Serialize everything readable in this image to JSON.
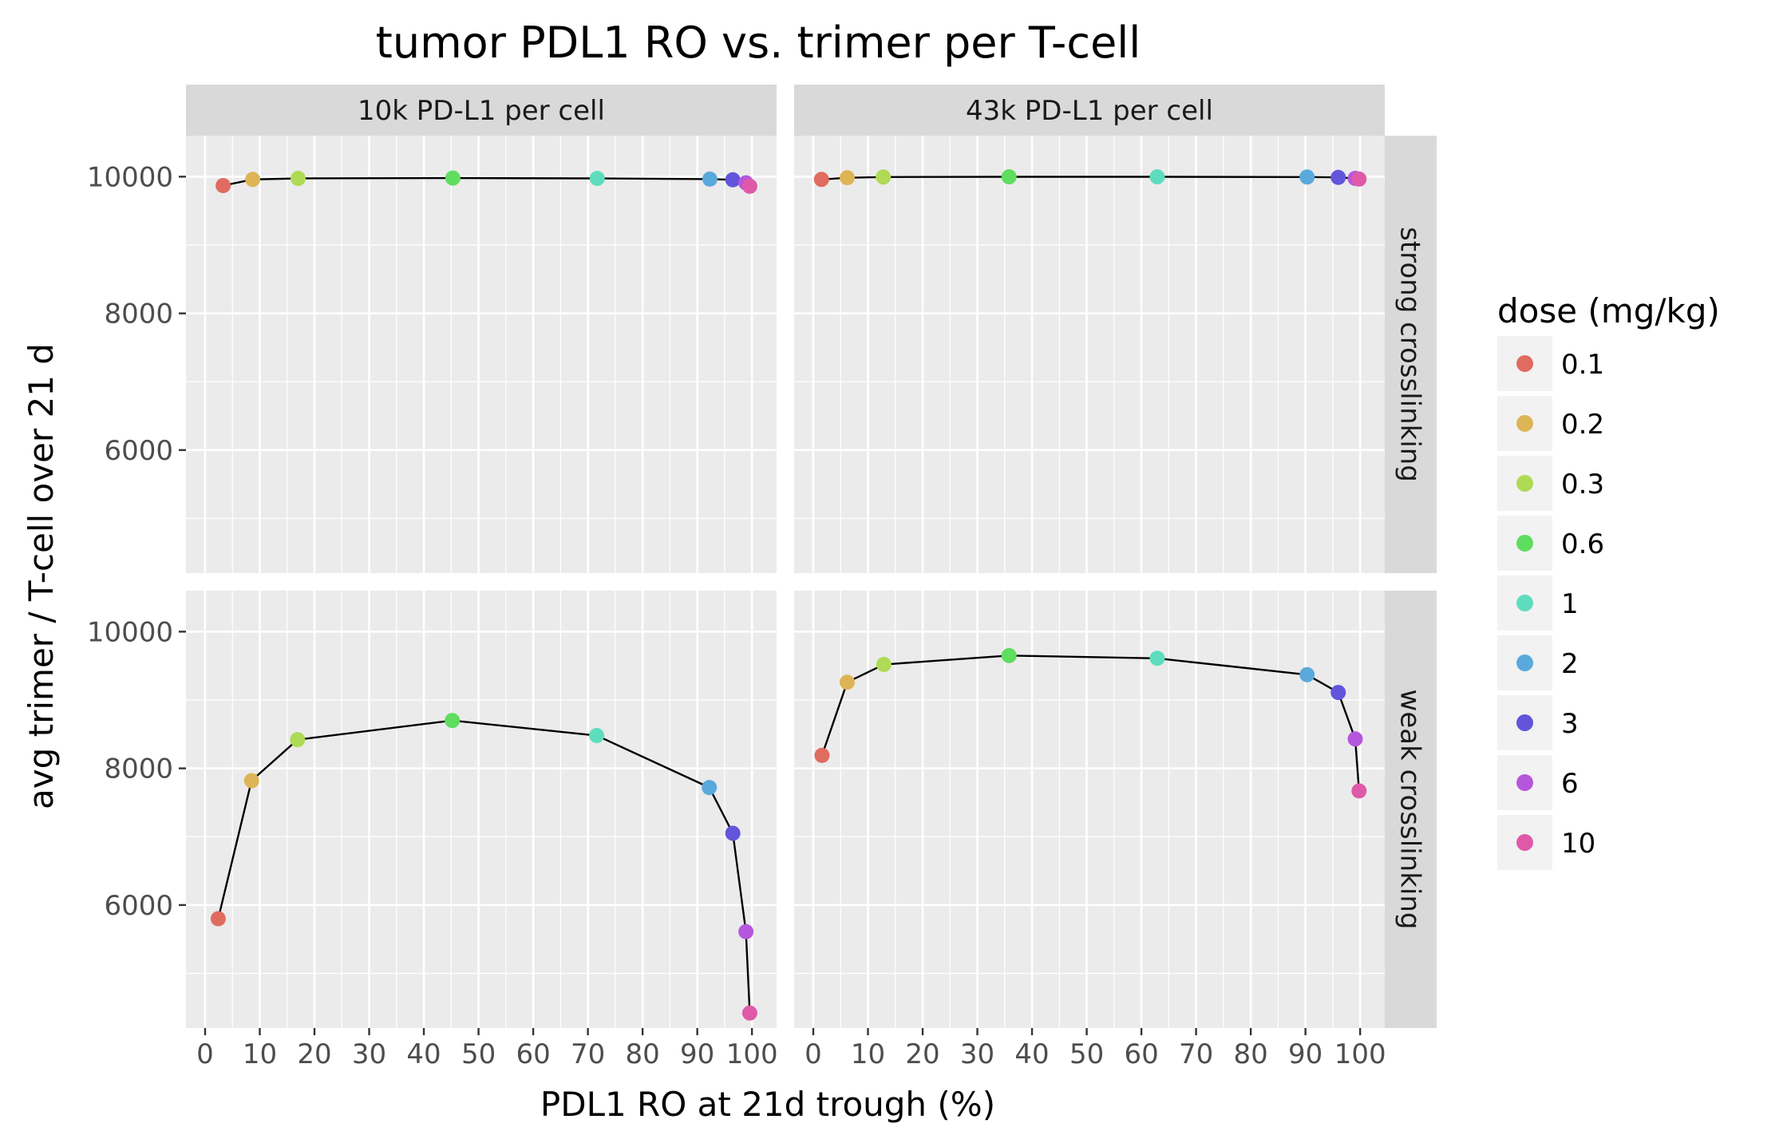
{
  "chart_data": {
    "type": "scatter",
    "title": "tumor PDL1 RO vs. trimer per T-cell",
    "xlabel": "PDL1 RO at 21d trough (%)",
    "ylabel": "avg trimer / T-cell over 21 d",
    "xlim": [
      -3.5,
      104.5
    ],
    "ylim": [
      4200,
      10600
    ],
    "x_ticks": [
      0,
      10,
      20,
      30,
      40,
      50,
      60,
      70,
      80,
      90,
      100
    ],
    "x_tick_labels": [
      "0",
      "10",
      "20",
      "30",
      "40",
      "50",
      "60",
      "70",
      "80",
      "90",
      "100"
    ],
    "y_ticks": [
      6000,
      8000,
      10000
    ],
    "y_tick_labels": [
      "6000",
      "8000",
      "10000"
    ],
    "grid": true,
    "legend_position": "right",
    "legend_title": "dose (mg/kg)",
    "legend": [
      {
        "label": "0.1",
        "color": "#E06B5F"
      },
      {
        "label": "0.2",
        "color": "#DDB556"
      },
      {
        "label": "0.3",
        "color": "#AEDA55"
      },
      {
        "label": "0.6",
        "color": "#5EDD5F"
      },
      {
        "label": "1",
        "color": "#5EDDBE"
      },
      {
        "label": "2",
        "color": "#5AA9DC"
      },
      {
        "label": "3",
        "color": "#6255DB"
      },
      {
        "label": "6",
        "color": "#B656DC"
      },
      {
        "label": "10",
        "color": "#DE5AA8"
      }
    ],
    "col_strips": [
      "10k PD-L1 per cell",
      "43k PD-L1 per cell"
    ],
    "row_strips": [
      "strong crosslinking",
      "weak crosslinking"
    ],
    "panels": [
      {
        "row": 0,
        "col": 0,
        "x": [
          3.3,
          8.7,
          17.0,
          45.3,
          71.7,
          92.3,
          96.5,
          98.9,
          99.6
        ],
        "y": [
          9870,
          9960,
          9975,
          9980,
          9975,
          9965,
          9955,
          9910,
          9860
        ]
      },
      {
        "row": 0,
        "col": 1,
        "x": [
          1.5,
          6.2,
          12.8,
          35.8,
          62.9,
          90.3,
          96.0,
          99.1,
          99.8
        ],
        "y": [
          9960,
          9985,
          9995,
          9998,
          9998,
          9995,
          9990,
          9975,
          9965
        ]
      },
      {
        "row": 1,
        "col": 0,
        "x": [
          2.4,
          8.5,
          16.9,
          45.2,
          71.6,
          92.2,
          96.5,
          98.9,
          99.6
        ],
        "y": [
          5800,
          7820,
          8420,
          8700,
          8480,
          7720,
          7050,
          5610,
          4420
        ]
      },
      {
        "row": 1,
        "col": 1,
        "x": [
          1.6,
          6.2,
          12.9,
          35.8,
          62.9,
          90.3,
          96.0,
          99.1,
          99.8
        ],
        "y": [
          8190,
          9260,
          9520,
          9650,
          9610,
          9370,
          9110,
          8430,
          7670
        ]
      }
    ]
  }
}
